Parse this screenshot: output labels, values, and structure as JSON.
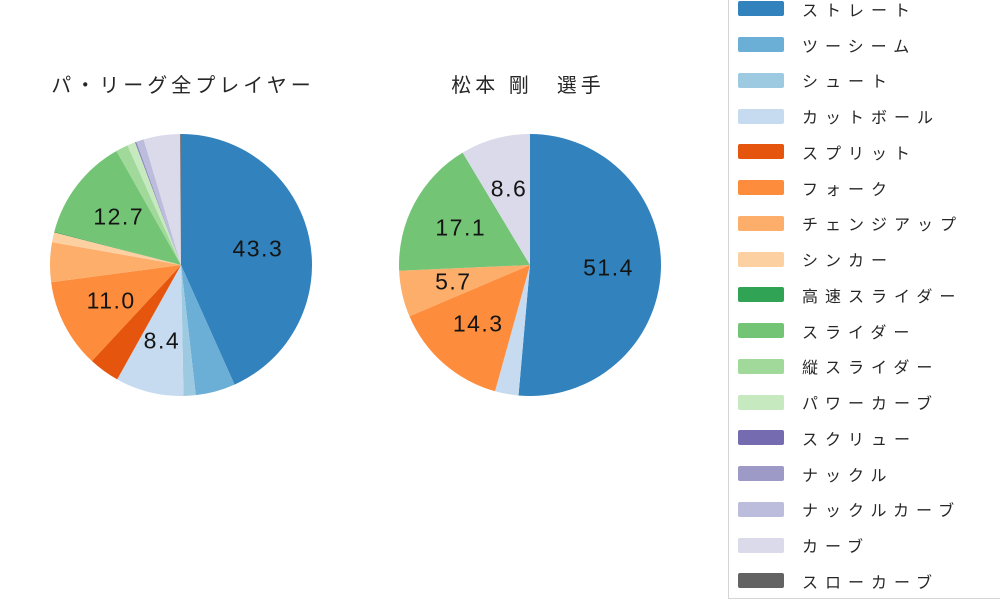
{
  "chart_data": {
    "type": "pie",
    "unit": "percent",
    "legend_position": "right",
    "palette": {
      "ストレート": "#3182bd",
      "ツーシーム": "#6baed6",
      "シュート": "#9ecae1",
      "カットボール": "#c6dbef",
      "スプリット": "#e6550d",
      "フォーク": "#fd8d3c",
      "チェンジアップ": "#fdae6b",
      "シンカー": "#fdd0a2",
      "高速スライダー": "#31a354",
      "スライダー": "#74c476",
      "縦スライダー": "#a1d99b",
      "パワーカーブ": "#c7e9c0",
      "スクリュー": "#756bb1",
      "ナックル": "#9e9ac8",
      "ナックルカーブ": "#bcbddc",
      "カーブ": "#dadaeb",
      "スローカーブ": "#636363"
    },
    "legend_items": [
      "ストレート",
      "ツーシーム",
      "シュート",
      "カットボール",
      "スプリット",
      "フォーク",
      "チェンジアップ",
      "シンカー",
      "高速スライダー",
      "スライダー",
      "縦スライダー",
      "パワーカーブ",
      "スクリュー",
      "ナックル",
      "ナックルカーブ",
      "カーブ",
      "スローカーブ"
    ],
    "charts": [
      {
        "title": "パ・リーグ全プレイヤー",
        "slices": [
          {
            "name": "ストレート",
            "value": 43.3,
            "labeled": true
          },
          {
            "name": "ツーシーム",
            "value": 4.9,
            "labeled": false
          },
          {
            "name": "シュート",
            "value": 1.5,
            "labeled": false
          },
          {
            "name": "カットボール",
            "value": 8.4,
            "labeled": true
          },
          {
            "name": "スプリット",
            "value": 3.8,
            "labeled": false
          },
          {
            "name": "フォーク",
            "value": 11.0,
            "labeled": true
          },
          {
            "name": "チェンジアップ",
            "value": 4.9,
            "labeled": false
          },
          {
            "name": "シンカー",
            "value": 1.2,
            "labeled": false
          },
          {
            "name": "高速スライダー",
            "value": 0.1,
            "labeled": false
          },
          {
            "name": "スライダー",
            "value": 12.7,
            "labeled": true
          },
          {
            "name": "縦スライダー",
            "value": 1.5,
            "labeled": false
          },
          {
            "name": "パワーカーブ",
            "value": 1.0,
            "labeled": false
          },
          {
            "name": "スクリュー",
            "value": 0.1,
            "labeled": false
          },
          {
            "name": "ナックル",
            "value": 0.1,
            "labeled": false
          },
          {
            "name": "ナックルカーブ",
            "value": 0.9,
            "labeled": false
          },
          {
            "name": "カーブ",
            "value": 4.5,
            "labeled": false
          },
          {
            "name": "スローカーブ",
            "value": 0.1,
            "labeled": false
          }
        ]
      },
      {
        "title": "松本 剛　選手",
        "slices": [
          {
            "name": "ストレート",
            "value": 51.4,
            "labeled": true
          },
          {
            "name": "カットボール",
            "value": 2.9,
            "labeled": false
          },
          {
            "name": "フォーク",
            "value": 14.3,
            "labeled": true
          },
          {
            "name": "チェンジアップ",
            "value": 5.7,
            "labeled": true
          },
          {
            "name": "スライダー",
            "value": 17.1,
            "labeled": true
          },
          {
            "name": "カーブ",
            "value": 8.6,
            "labeled": true
          }
        ]
      }
    ]
  }
}
